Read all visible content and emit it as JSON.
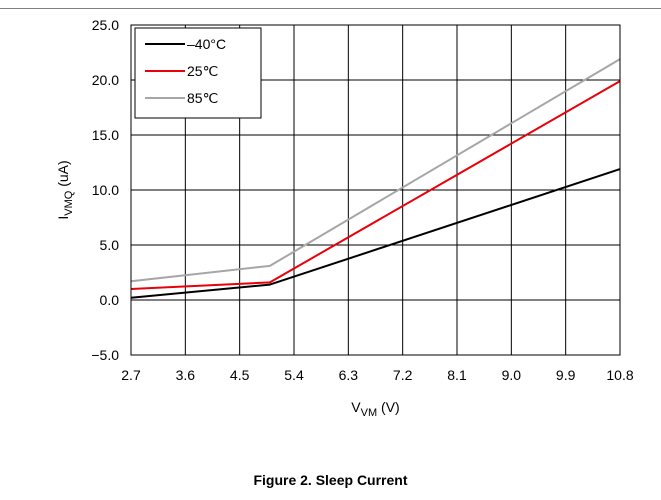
{
  "figure": {
    "caption": "Figure 2. Sleep Current"
  },
  "chart_data": {
    "type": "line",
    "title": "",
    "xlabel": {
      "main": "V",
      "sub": "VM",
      "suffix": " (V)"
    },
    "ylabel": {
      "main": "I",
      "sub": "VMQ",
      "suffix": " (uA)"
    },
    "xlim": [
      2.7,
      10.8
    ],
    "ylim": [
      -5.0,
      25.0
    ],
    "x_ticks": [
      2.7,
      3.6,
      4.5,
      5.4,
      6.3,
      7.2,
      8.1,
      9.0,
      9.9,
      10.8
    ],
    "x_tick_labels": [
      "2.7",
      "3.6",
      "4.5",
      "5.4",
      "6.3",
      "7.2",
      "8.1",
      "9.0",
      "9.9",
      "10.8"
    ],
    "y_ticks": [
      -5.0,
      0.0,
      5.0,
      10.0,
      15.0,
      20.0,
      25.0
    ],
    "y_tick_labels": [
      "−5.0",
      "0.0",
      "5.0",
      "10.0",
      "15.0",
      "20.0",
      "25.0"
    ],
    "grid": true,
    "legend_position": "top-left",
    "series": [
      {
        "name": "–40°C",
        "color": "#000000",
        "x": [
          2.7,
          5.0,
          10.8
        ],
        "y": [
          0.2,
          1.4,
          11.9
        ]
      },
      {
        "name": "25℃",
        "color": "#e8000b",
        "x": [
          2.7,
          5.0,
          10.8
        ],
        "y": [
          1.0,
          1.6,
          19.9
        ]
      },
      {
        "name": "85℃",
        "color": "#a6a6a6",
        "x": [
          2.7,
          5.0,
          10.8
        ],
        "y": [
          1.7,
          3.1,
          21.9
        ]
      }
    ]
  }
}
